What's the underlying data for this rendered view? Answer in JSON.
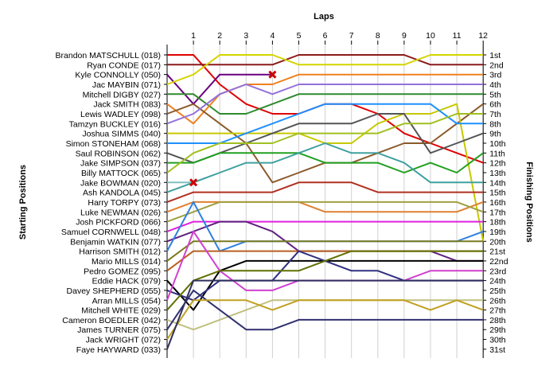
{
  "chart_data": {
    "type": "line",
    "title": "",
    "x_title": "Laps",
    "y_left_title": "Starting Positions",
    "y_right_title": "Finishing Positions",
    "laps": [
      1,
      2,
      3,
      4,
      5,
      6,
      7,
      8,
      9,
      10,
      11,
      12
    ],
    "rank_labels": [
      "1st",
      "2nd",
      "3rd",
      "4th",
      "5th",
      "6th",
      "7th",
      "8th",
      "9th",
      "10th",
      "11th",
      "12th",
      "13th",
      "14th",
      "15th",
      "16th",
      "17th",
      "18th",
      "19th",
      "20th",
      "21st",
      "22nd",
      "23rd",
      "24th",
      "25th",
      "26th",
      "27th",
      "28th",
      "29th",
      "30th",
      "31st"
    ],
    "series": [
      {
        "name": "Brandon MATSCHULL (018)",
        "color": "#e00000",
        "start": 1,
        "positions": [
          1,
          4,
          6,
          7,
          7,
          6,
          6,
          7,
          9,
          10,
          11,
          12
        ]
      },
      {
        "name": "Ryan CONDE (017)",
        "color": "#8b1a1a",
        "start": 2,
        "positions": [
          2,
          2,
          2,
          2,
          1,
          1,
          1,
          1,
          1,
          2,
          2,
          2
        ]
      },
      {
        "name": "Kyle CONNOLLY (050)",
        "color": "#6a0080",
        "start": 3,
        "positions": [
          6,
          3,
          3,
          3
        ]
      },
      {
        "name": "Jac MAYBIN (071)",
        "color": "#d4d400",
        "start": 4,
        "positions": [
          3,
          1,
          1,
          1,
          2,
          2,
          2,
          2,
          2,
          1,
          1,
          1
        ]
      },
      {
        "name": "Mitchell DIGBY (027)",
        "color": "#2e8b2e",
        "start": 5,
        "positions": [
          5,
          7,
          7,
          6,
          5,
          5,
          5,
          5,
          5,
          5,
          5,
          5
        ]
      },
      {
        "name": "Jack SMITH (083)",
        "color": "#f08020",
        "start": 6,
        "positions": [
          8,
          5,
          4,
          4,
          3,
          3,
          3,
          3,
          3,
          3,
          3,
          3
        ]
      },
      {
        "name": "Lewis WADLEY (098)",
        "color": "#8b5a2b",
        "start": 7,
        "positions": [
          6,
          8,
          10,
          14,
          13,
          12,
          12,
          11,
          10,
          10,
          8,
          6
        ]
      },
      {
        "name": "Tamzyn BUCKLEY (016)",
        "color": "#9370db",
        "start": 8,
        "positions": [
          7,
          5,
          4,
          5,
          4,
          4,
          4,
          4,
          4,
          4,
          4,
          4
        ]
      },
      {
        "name": "Joshua SIMMS (040)",
        "color": "#c8c800",
        "start": 9,
        "positions": [
          9,
          9,
          9,
          9,
          9,
          10,
          10,
          8,
          7,
          7,
          6,
          20
        ]
      },
      {
        "name": "Simon STONEHAM (068)",
        "color": "#1e90ff",
        "start": 10,
        "positions": [
          10,
          10,
          9,
          8,
          7,
          6,
          6,
          6,
          6,
          6,
          8,
          8
        ]
      },
      {
        "name": "Saul ROBINSON (062)",
        "color": "#555555",
        "start": 11,
        "positions": [
          12,
          11,
          10,
          9,
          8,
          8,
          8,
          7,
          7,
          11,
          10,
          9
        ]
      },
      {
        "name": "Jake SIMPSON (037)",
        "color": "#20a020",
        "start": 12,
        "positions": [
          12,
          11,
          11,
          11,
          11,
          12,
          12,
          12,
          13,
          12,
          13,
          11
        ]
      },
      {
        "name": "Billy MATTOCK (065)",
        "color": "#a0c020",
        "start": 13,
        "positions": [
          11,
          10,
          10,
          10,
          9,
          9,
          9,
          9,
          8,
          8,
          7,
          7
        ]
      },
      {
        "name": "Jake BOWMAN (020)",
        "color": "#80c0c0",
        "start": 14,
        "positions": [
          14
        ]
      },
      {
        "name": "Ash KANDOLA (045)",
        "color": "#40a0a0",
        "start": 15,
        "positions": [
          14,
          13,
          12,
          12,
          11,
          10,
          11,
          11,
          12,
          14,
          14,
          14
        ]
      },
      {
        "name": "Harry TORPY (073)",
        "color": "#b03020",
        "start": 16,
        "positions": [
          15,
          15,
          15,
          15,
          14,
          14,
          14,
          15,
          15,
          15,
          15,
          15
        ]
      },
      {
        "name": "Luke NEWMAN (026)",
        "color": "#e08030",
        "start": 17,
        "positions": [
          16,
          16,
          16,
          16,
          16,
          17,
          17,
          17,
          17,
          17,
          17,
          16
        ]
      },
      {
        "name": "Josh PICKFORD (066)",
        "color": "#a0a040",
        "start": 18,
        "positions": [
          17,
          16,
          16,
          16,
          16,
          16,
          16,
          16,
          16,
          16,
          16,
          17
        ]
      },
      {
        "name": "Samuel CORNWELL (048)",
        "color": "#e020e0",
        "start": 19,
        "positions": [
          18,
          18,
          18,
          18,
          18,
          18,
          18,
          18,
          18,
          18,
          18,
          18
        ]
      },
      {
        "name": "Benjamin WATKIN (077)",
        "color": "#602080",
        "start": 20,
        "positions": [
          19,
          18,
          18,
          19,
          21,
          21,
          21,
          21,
          21,
          21,
          22,
          22
        ]
      },
      {
        "name": "Harrison SMITH (012)",
        "color": "#3080e0",
        "start": 21,
        "positions": [
          16,
          21,
          20,
          20,
          20,
          20,
          20,
          20,
          20,
          20,
          20,
          19
        ]
      },
      {
        "name": "Mario MILLS (014)",
        "color": "#7a7a20",
        "start": 22,
        "positions": [
          20,
          20,
          20,
          20,
          20,
          20,
          20,
          20,
          20,
          20,
          20,
          20
        ]
      },
      {
        "name": "Pedro GOMEZ (095)",
        "color": "#b86020",
        "start": 23,
        "positions": [
          21,
          21,
          21,
          21,
          21,
          21,
          21,
          21,
          21,
          21,
          21,
          21
        ]
      },
      {
        "name": "Eddie HACK (079)",
        "color": "#000000",
        "start": 24,
        "positions": [
          27,
          23,
          22,
          22,
          22,
          22,
          22,
          22,
          22,
          22,
          22,
          22
        ]
      },
      {
        "name": "Davey SHEPHERD (055)",
        "color": "#303080",
        "start": 25,
        "positions": [
          26,
          24,
          24,
          24,
          21,
          22,
          23,
          23,
          24,
          24,
          24,
          24
        ]
      },
      {
        "name": "Arran MILLS (054)",
        "color": "#d040d0",
        "start": 26,
        "positions": [
          19,
          23,
          25,
          25,
          24,
          24,
          24,
          24,
          24,
          23,
          23,
          23
        ]
      },
      {
        "name": "Mitchell WHITE (029)",
        "color": "#607000",
        "start": 27,
        "positions": [
          24,
          23,
          23,
          23,
          23,
          22,
          21,
          21,
          21,
          21,
          21,
          21
        ]
      },
      {
        "name": "Cameron BOEDLER (042)",
        "color": "#c0c080",
        "start": 28,
        "positions": [
          29,
          28,
          27,
          26,
          26,
          26,
          26,
          26,
          26,
          26,
          26,
          26
        ]
      },
      {
        "name": "James TURNER (075)",
        "color": "#303070",
        "start": 29,
        "positions": [
          25,
          27,
          29,
          29,
          28,
          28,
          28,
          28,
          28,
          28,
          28,
          28
        ]
      },
      {
        "name": "Jack WRIGHT (072)",
        "color": "#c0a020",
        "start": 30,
        "positions": [
          26,
          26,
          26,
          27,
          26,
          26,
          26,
          26,
          26,
          27,
          26,
          27
        ]
      },
      {
        "name": "Faye HAYWARD (033)",
        "color": "#303060",
        "start": 31,
        "positions": [
          24,
          24,
          24,
          24,
          24,
          24,
          24,
          24,
          24,
          24,
          24,
          24
        ]
      }
    ],
    "retirements": [
      {
        "name": "Kyle CONNOLLY (050)",
        "lap": 4,
        "position": 3
      },
      {
        "name": "Jake BOWMAN (020)",
        "lap": 1,
        "position": 14
      }
    ],
    "grid": true
  }
}
